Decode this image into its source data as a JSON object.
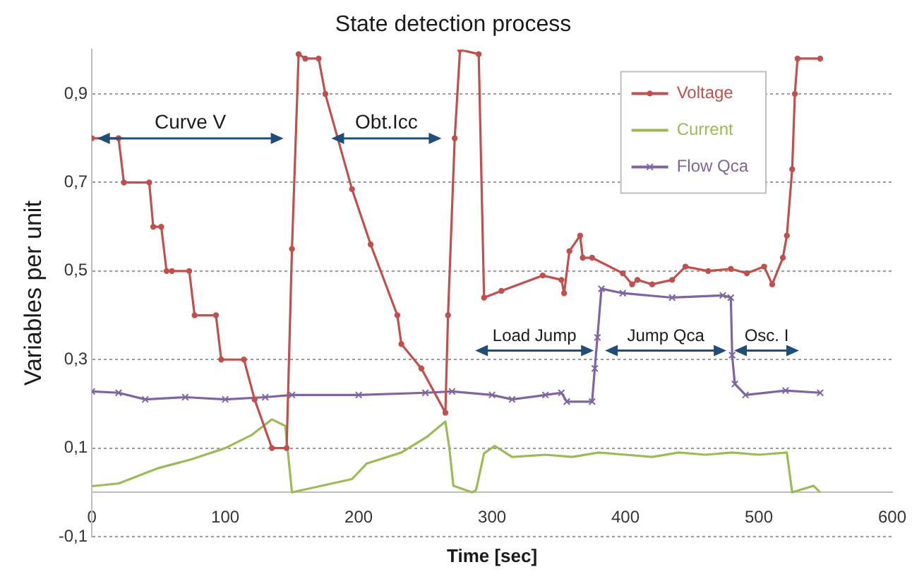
{
  "chart_data": {
    "type": "line",
    "title": "State detection process",
    "xlabel": "Time [sec]",
    "ylabel": "Variables per unit",
    "xlim": [
      0,
      600
    ],
    "xticks": [
      0,
      100,
      200,
      300,
      400,
      500,
      600
    ],
    "ylim": [
      -0.1,
      1.0
    ],
    "yticks": [
      {
        "value": -0.1,
        "label": "-0,1"
      },
      {
        "value": 0.1,
        "label": "0,1"
      },
      {
        "value": 0.3,
        "label": "0,3"
      },
      {
        "value": 0.5,
        "label": "0,5"
      },
      {
        "value": 0.7,
        "label": "0,7"
      },
      {
        "value": 0.9,
        "label": "0,9"
      }
    ],
    "grid": "y",
    "legend": "top right",
    "line_style": "solid",
    "series": [
      {
        "name": "Voltage",
        "color": "#c0504d",
        "marker": "circle",
        "x": [
          0,
          20,
          24,
          43,
          46,
          52,
          56,
          60,
          73,
          77,
          93,
          97,
          114,
          122,
          135,
          146,
          150,
          155,
          160,
          170,
          175,
          195,
          209,
          229,
          232,
          247,
          265,
          267,
          272,
          276,
          290,
          294,
          307,
          338,
          352,
          354,
          358,
          366,
          368,
          375,
          398,
          405,
          409,
          420,
          435,
          445,
          462,
          479,
          491,
          504,
          510,
          518,
          521,
          525,
          527,
          529,
          546
        ],
        "values": [
          0.8,
          0.8,
          0.7,
          0.7,
          0.6,
          0.6,
          0.5,
          0.5,
          0.5,
          0.4,
          0.4,
          0.3,
          0.3,
          0.21,
          0.1,
          0.1,
          0.55,
          0.99,
          0.98,
          0.98,
          0.9,
          0.685,
          0.56,
          0.4,
          0.335,
          0.28,
          0.18,
          0.4,
          0.8,
          1.0,
          0.99,
          0.44,
          0.455,
          0.49,
          0.48,
          0.45,
          0.545,
          0.58,
          0.53,
          0.53,
          0.495,
          0.47,
          0.48,
          0.47,
          0.48,
          0.51,
          0.5,
          0.505,
          0.495,
          0.51,
          0.47,
          0.53,
          0.58,
          0.73,
          0.9,
          0.98,
          0.98
        ]
      },
      {
        "name": "Current",
        "color": "#9bbb59",
        "marker": "none",
        "x": [
          0,
          20,
          50,
          75,
          100,
          120,
          135,
          145,
          148,
          150,
          165,
          180,
          195,
          206,
          232,
          251,
          265,
          268,
          271,
          285,
          288,
          294,
          302,
          315,
          340,
          360,
          380,
          400,
          420,
          440,
          460,
          480,
          500,
          521,
          525,
          541,
          546
        ],
        "values": [
          0.014,
          0.02,
          0.055,
          0.075,
          0.1,
          0.13,
          0.165,
          0.15,
          0.06,
          0.0,
          0.01,
          0.02,
          0.03,
          0.065,
          0.09,
          0.125,
          0.16,
          0.1,
          0.015,
          0.0,
          0.005,
          0.088,
          0.105,
          0.08,
          0.085,
          0.08,
          0.09,
          0.085,
          0.08,
          0.09,
          0.085,
          0.09,
          0.085,
          0.09,
          0.0,
          0.015,
          0.0
        ]
      },
      {
        "name": "Flow Qca",
        "color": "#8064a2",
        "marker": "cross",
        "x": [
          0,
          20,
          40,
          70,
          100,
          130,
          150,
          200,
          250,
          270,
          300,
          315,
          340,
          352,
          356,
          375,
          377,
          379,
          382,
          398,
          435,
          473,
          479,
          480,
          482,
          490,
          520,
          546
        ],
        "values": [
          0.228,
          0.225,
          0.21,
          0.215,
          0.21,
          0.215,
          0.22,
          0.22,
          0.225,
          0.228,
          0.22,
          0.21,
          0.22,
          0.225,
          0.205,
          0.205,
          0.28,
          0.35,
          0.46,
          0.45,
          0.44,
          0.445,
          0.44,
          0.31,
          0.245,
          0.22,
          0.23,
          0.225
        ]
      }
    ],
    "annotations": [
      "Curve V",
      "Obt.Icc",
      "Load Jump",
      "Jump Qca",
      "Osc. I"
    ]
  }
}
